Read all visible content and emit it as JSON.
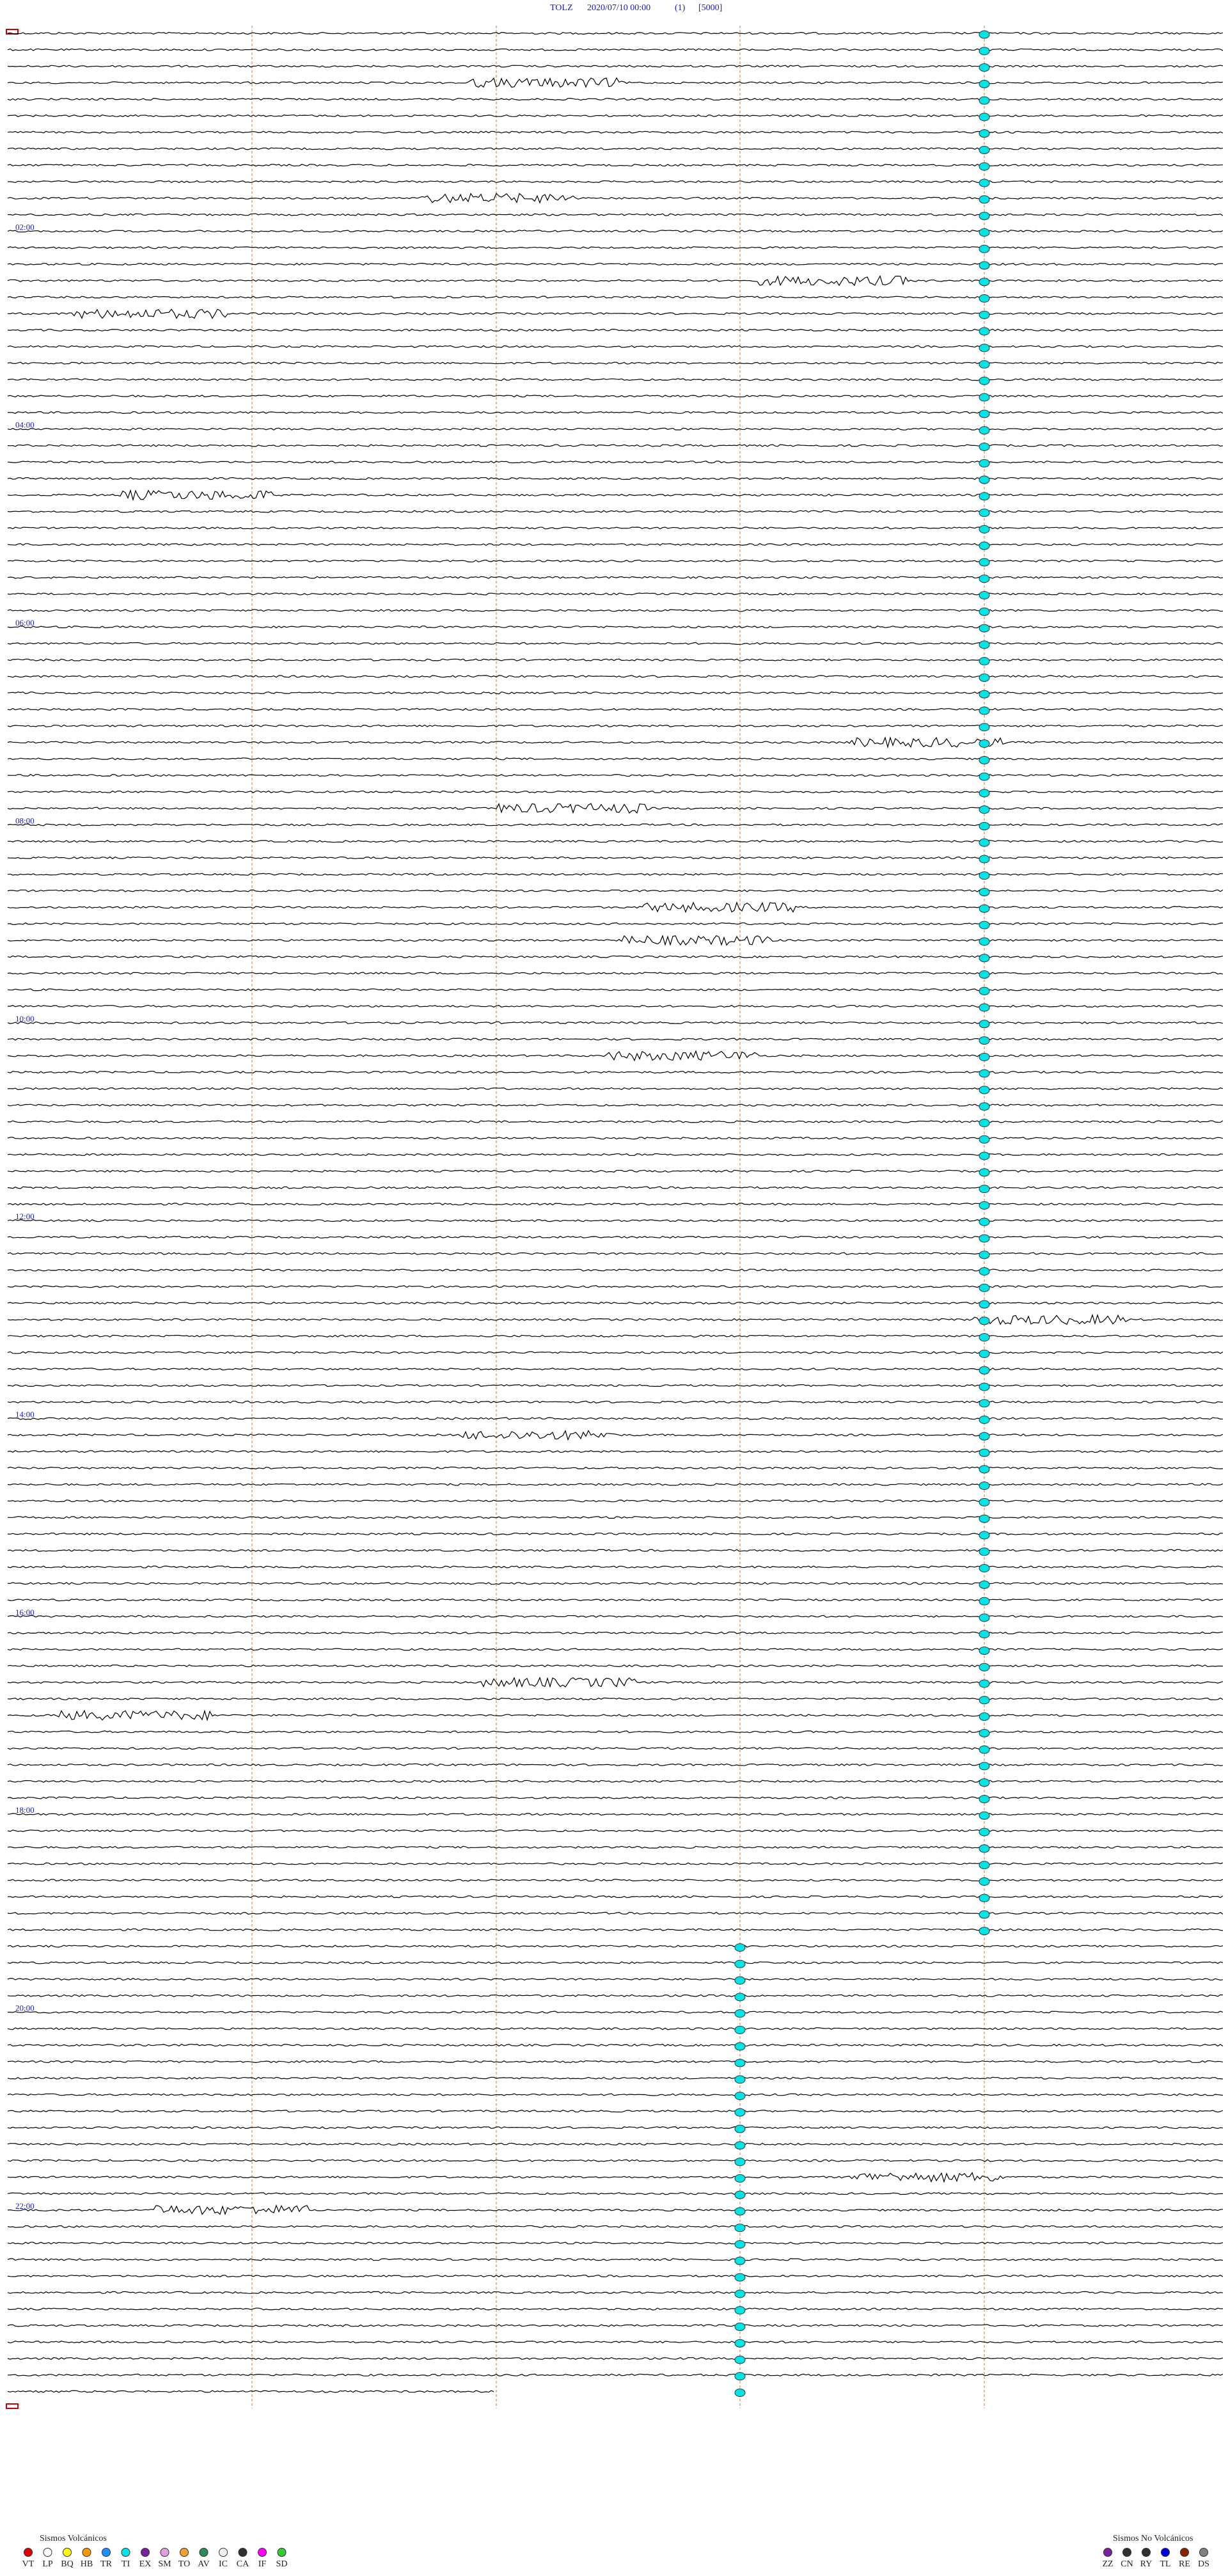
{
  "header": {
    "station": "TOLZ",
    "datetime": "2020/07/10 00:00",
    "channel": "(1)",
    "gain": "[5000]"
  },
  "hour_labels": [
    "02:00",
    "04:00",
    "06:00",
    "08:00",
    "10:00",
    "12:00",
    "14:00",
    "16:00",
    "18:00",
    "20:00",
    "22:00"
  ],
  "legend": {
    "volcanic": {
      "title": "Sismos Volcánicos",
      "items": [
        {
          "code": "VT",
          "color": "#e00000"
        },
        {
          "code": "LP",
          "color": "#ffffff"
        },
        {
          "code": "BQ",
          "color": "#ffff00"
        },
        {
          "code": "HB",
          "color": "#ff9900"
        },
        {
          "code": "TR",
          "color": "#1e90ff"
        },
        {
          "code": "TI",
          "color": "#00e5e5"
        },
        {
          "code": "EX",
          "color": "#7a1fa2"
        },
        {
          "code": "SM",
          "color": "#e0a0e0"
        },
        {
          "code": "TO",
          "color": "#f0a030"
        },
        {
          "code": "AV",
          "color": "#2e8b57"
        },
        {
          "code": "IC",
          "color": "#f0f0f0"
        },
        {
          "code": "CA",
          "color": "#303030"
        },
        {
          "code": "IF",
          "color": "#ff00ff"
        },
        {
          "code": "SD",
          "color": "#32cd32"
        }
      ]
    },
    "non_volcanic": {
      "title": "Sismos No Volcánicos",
      "items": [
        {
          "code": "ZZ",
          "color": "#7a1fa2"
        },
        {
          "code": "CN",
          "color": "#303030"
        },
        {
          "code": "RY",
          "color": "#303030"
        },
        {
          "code": "TL",
          "color": "#0000dd"
        },
        {
          "code": "RE",
          "color": "#8b2500"
        },
        {
          "code": "DS",
          "color": "#808080"
        }
      ]
    }
  }
}
